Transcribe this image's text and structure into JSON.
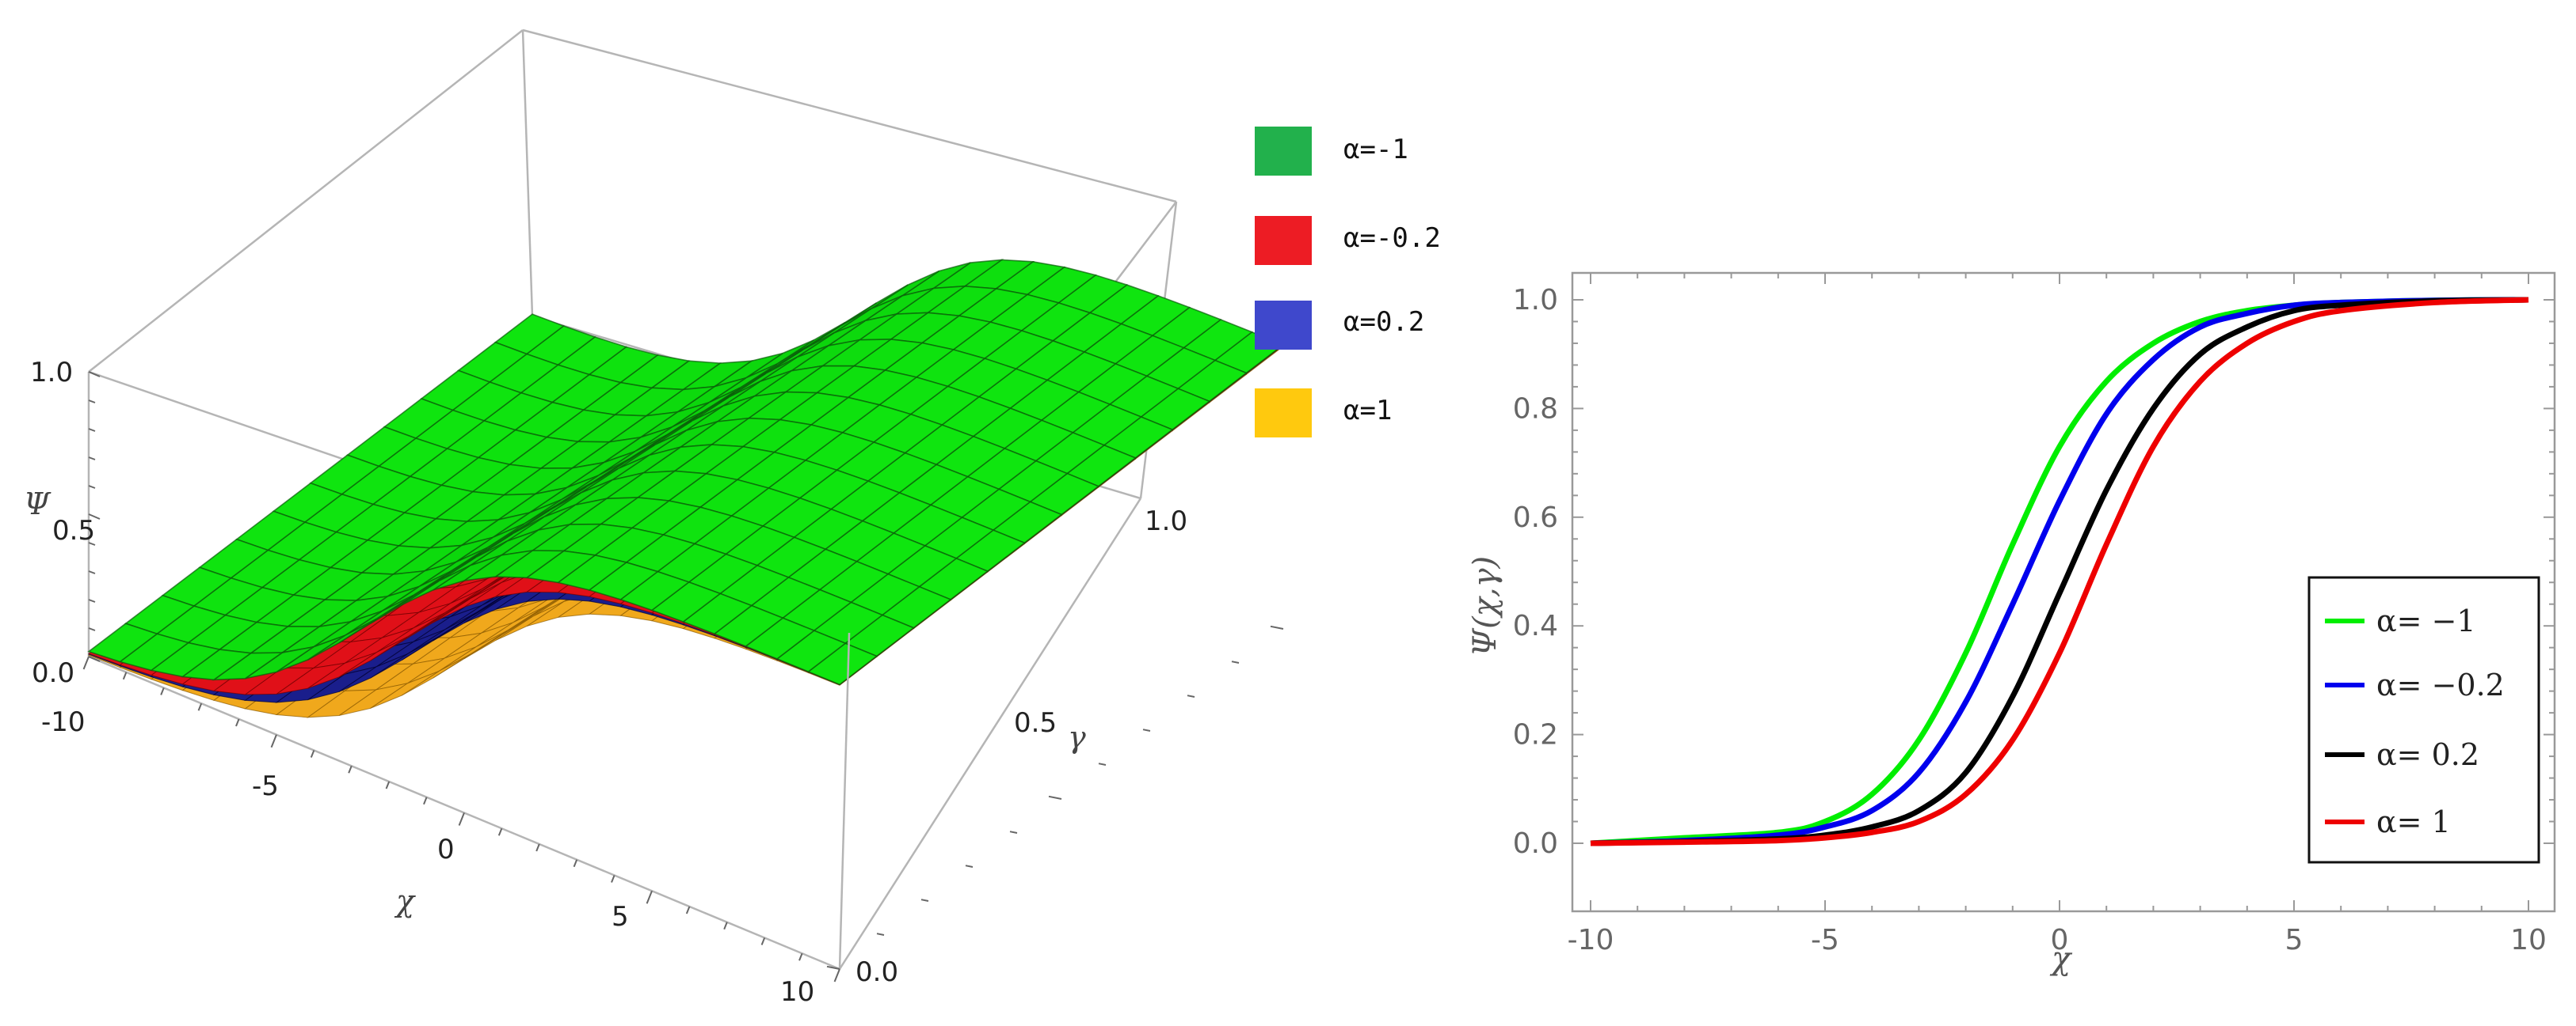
{
  "chart_data": [
    {
      "type": "surface3d",
      "title": "",
      "xlabel": "χ",
      "ylabel": "γ",
      "zlabel": "Ψ",
      "xlim": [
        -10,
        10
      ],
      "ylim": [
        0,
        1
      ],
      "zlim": [
        0,
        1
      ],
      "x_ticks": [
        "-10",
        "-5",
        "0",
        "5",
        "10"
      ],
      "y_ticks": [
        "0.0",
        "0.5",
        "1.0"
      ],
      "z_ticks": [
        "0.0",
        "0.5",
        "1.0"
      ],
      "legend": [
        {
          "label": "α=-1",
          "color": "#22b14c"
        },
        {
          "label": "α=-0.2",
          "color": "#ed1c24"
        },
        {
          "label": "α=0.2",
          "color": "#3f48cc"
        },
        {
          "label": "α=1",
          "color": "#ffc90e"
        }
      ],
      "legend_position": "right",
      "surface_color": "#12d812",
      "mesh": true
    },
    {
      "type": "line",
      "title": "",
      "xlabel": "χ",
      "ylabel": "Ψ(χ,γ)",
      "xlim": [
        -10,
        10
      ],
      "ylim": [
        0,
        1
      ],
      "x_ticks": [
        "-10",
        "-5",
        "0",
        "5",
        "10"
      ],
      "y_ticks": [
        "0.0",
        "0.2",
        "0.4",
        "0.6",
        "0.8",
        "1.0"
      ],
      "legend_position": "bottom-right",
      "series": [
        {
          "name": "α= −1",
          "color": "#00ee00",
          "x": [
            -10,
            -8,
            -6,
            -5,
            -4,
            -3,
            -2,
            -1,
            0,
            1,
            2,
            3,
            4,
            5,
            6,
            8,
            10
          ],
          "y": [
            0.0,
            0.01,
            0.02,
            0.04,
            0.09,
            0.19,
            0.35,
            0.55,
            0.73,
            0.85,
            0.92,
            0.96,
            0.98,
            0.99,
            0.995,
            0.999,
            1.0
          ]
        },
        {
          "name": "α= −0.2",
          "color": "#0000ee",
          "x": [
            -10,
            -8,
            -6,
            -5,
            -4,
            -3,
            -2,
            -1,
            0,
            1,
            2,
            3,
            4,
            5,
            6,
            8,
            10
          ],
          "y": [
            0.0,
            0.005,
            0.015,
            0.03,
            0.06,
            0.13,
            0.26,
            0.44,
            0.63,
            0.79,
            0.89,
            0.95,
            0.975,
            0.99,
            0.995,
            0.999,
            1.0
          ]
        },
        {
          "name": "α= 0.2",
          "color": "#000000",
          "x": [
            -10,
            -8,
            -6,
            -5,
            -4,
            -3,
            -2,
            -1,
            0,
            1,
            2,
            3,
            4,
            5,
            6,
            8,
            10
          ],
          "y": [
            0.0,
            0.003,
            0.008,
            0.015,
            0.03,
            0.06,
            0.13,
            0.27,
            0.46,
            0.65,
            0.8,
            0.9,
            0.95,
            0.98,
            0.99,
            0.998,
            1.0
          ]
        },
        {
          "name": "α= 1",
          "color": "#ee0000",
          "x": [
            -10,
            -8,
            -6,
            -5,
            -4,
            -3,
            -2,
            -1,
            0,
            1,
            2,
            3,
            4,
            5,
            6,
            8,
            10
          ],
          "y": [
            0.0,
            0.002,
            0.005,
            0.01,
            0.02,
            0.04,
            0.09,
            0.19,
            0.35,
            0.55,
            0.73,
            0.85,
            0.92,
            0.96,
            0.98,
            0.995,
            1.0
          ]
        }
      ]
    }
  ]
}
